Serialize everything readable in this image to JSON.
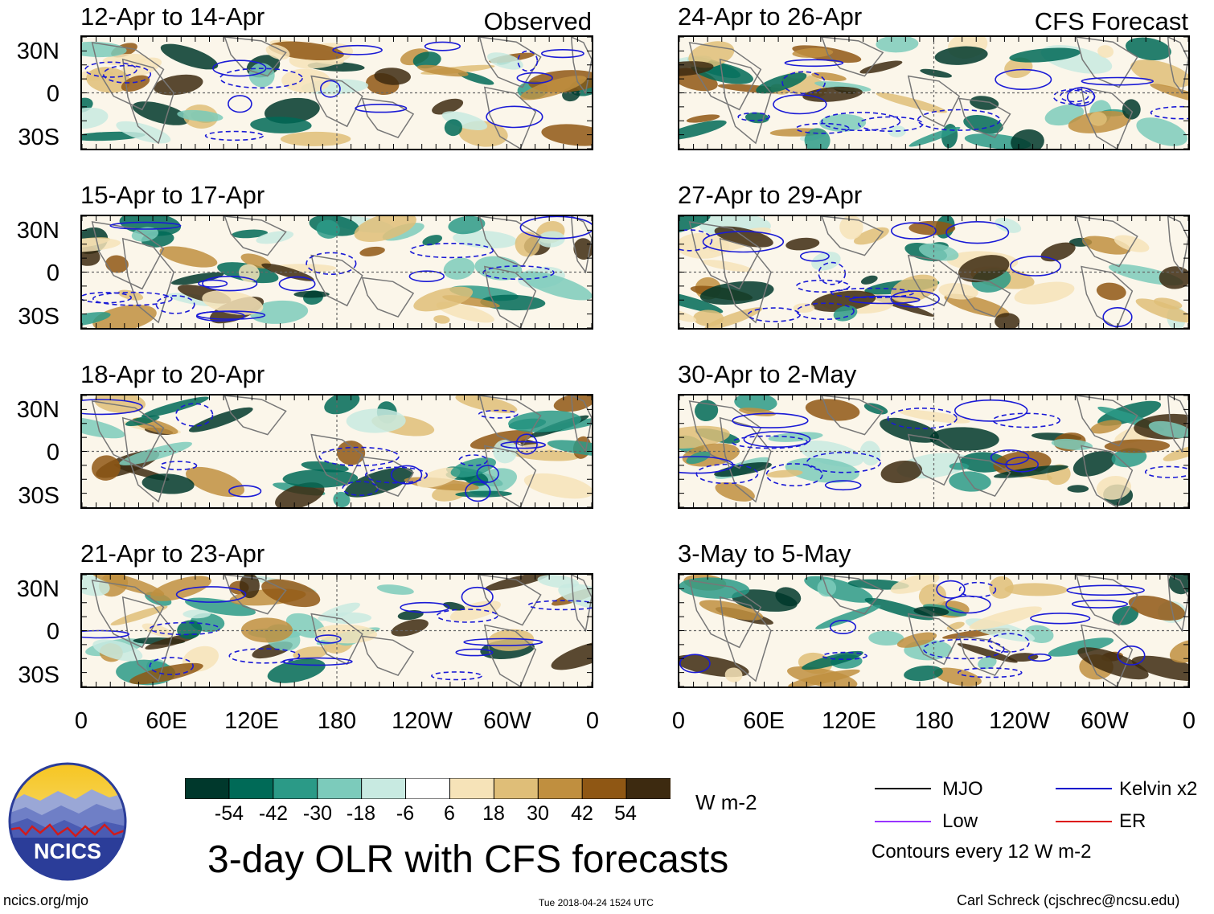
{
  "header": {
    "observed_label": "Observed",
    "forecast_label": "CFS Forecast"
  },
  "panels": {
    "left": [
      {
        "title": "12-Apr to 14-Apr"
      },
      {
        "title": "15-Apr to 17-Apr"
      },
      {
        "title": "18-Apr to 20-Apr"
      },
      {
        "title": "21-Apr to 23-Apr"
      }
    ],
    "right": [
      {
        "title": "24-Apr to 26-Apr"
      },
      {
        "title": "27-Apr to 29-Apr"
      },
      {
        "title": "30-Apr to 2-May"
      },
      {
        "title": "3-May to 5-May"
      }
    ]
  },
  "axes": {
    "lat_labels": [
      "30N",
      "0",
      "30S"
    ],
    "lon_labels": [
      "0",
      "60E",
      "120E",
      "180",
      "120W",
      "60W",
      "0"
    ]
  },
  "colorbar": {
    "labels": [
      "-54",
      "-42",
      "-30",
      "-18",
      "-6",
      "6",
      "18",
      "30",
      "42",
      "54"
    ],
    "colors": [
      "#00382c",
      "#006a57",
      "#2b9a87",
      "#7ccbbb",
      "#c8eae1",
      "#ffffff",
      "#f6e3b8",
      "#dfbe78",
      "#c08f3f",
      "#8f5714",
      "#3d2a10"
    ],
    "units": "W m-2"
  },
  "title": "3-day OLR with CFS forecasts",
  "legend": {
    "items": [
      {
        "label": "MJO",
        "color": "#000000"
      },
      {
        "label": "Kelvin x2",
        "color": "#0000cc"
      },
      {
        "label": "Low",
        "color": "#9933ff"
      },
      {
        "label": "ER",
        "color": "#dd0000"
      }
    ],
    "contours_note": "Contours every 12 W m-2"
  },
  "logo": {
    "text": "NCICS"
  },
  "footer": {
    "url": "ncics.org/mjo",
    "timestamp": "Tue 2018-04-24 1524 UTC",
    "credit": "Carl Schreck (cjschrec@ncsu.edu)"
  }
}
